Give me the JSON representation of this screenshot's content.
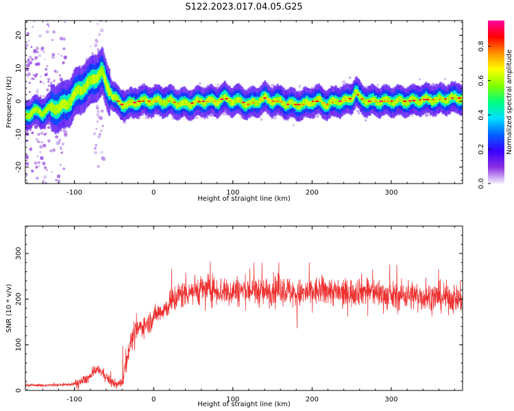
{
  "title": "S122.2023.017.04.05.G25",
  "chart_data": [
    {
      "type": "heatmap",
      "description_source": "top panel",
      "xlabel": "Height of straight line (km)",
      "ylabel": "Frequency (Hz)",
      "xlim": [
        -162,
        390
      ],
      "ylim": [
        -25,
        24.5
      ],
      "xticks": [
        -100,
        0,
        100,
        200,
        300
      ],
      "yticks": [
        -20,
        -10,
        0,
        10,
        20
      ],
      "colorbar": {
        "label": "Normalized spectral amplitude",
        "range": [
          0.0,
          0.95
        ],
        "ticks": [
          0.0,
          0.2,
          0.4,
          0.6,
          0.8
        ],
        "colormap": [
          "#e0d8f0",
          "#8a30e0",
          "#3a00ff",
          "#0060ff",
          "#00e0ff",
          "#00ff80",
          "#80ff00",
          "#ffff00",
          "#ff9000",
          "#ff0000",
          "#ff00a0"
        ]
      },
      "ridge": {
        "x": [
          -160,
          -150,
          -140,
          -130,
          -120,
          -110,
          -100,
          -90,
          -80,
          -70,
          -65,
          -60,
          -55,
          -50,
          -45,
          -40,
          -30,
          -20,
          0,
          20,
          40,
          60,
          80,
          90,
          100,
          110,
          120,
          130,
          140,
          150,
          160,
          170,
          180,
          190,
          200,
          210,
          220,
          230,
          240,
          250,
          255,
          260,
          270,
          280,
          300,
          320,
          340,
          360,
          380,
          390
        ],
        "freq_hz": [
          -4,
          -3,
          -3.5,
          -2,
          -2,
          -1,
          2,
          4,
          6,
          8,
          9,
          5,
          3,
          1,
          0,
          -1,
          -1,
          0,
          0,
          0,
          -1,
          0,
          0,
          1,
          0,
          0,
          -1,
          0,
          1,
          0,
          0,
          -1,
          -1,
          -1,
          0,
          0,
          -1,
          0,
          0,
          1,
          3,
          1,
          0,
          0,
          0,
          0,
          0.5,
          0.5,
          1,
          1
        ]
      }
    },
    {
      "type": "line",
      "description_source": "bottom panel",
      "xlabel": "Height of straight line (km)",
      "ylabel": "SNR (10 * v/v)",
      "xlim": [
        -162,
        390
      ],
      "ylim": [
        0,
        360
      ],
      "xticks": [
        -100,
        0,
        100,
        200,
        300
      ],
      "yticks": [
        0,
        100,
        200,
        300
      ],
      "series": [
        {
          "color": "#ee3030",
          "x": [
            -162,
            -140,
            -120,
            -100,
            -90,
            -80,
            -75,
            -70,
            -65,
            -60,
            -55,
            -50,
            -45,
            -40,
            -35,
            -30,
            -25,
            -20,
            -15,
            -10,
            -5,
            0,
            5,
            10,
            15,
            20,
            25,
            30,
            40,
            50,
            60,
            70,
            80,
            90,
            100,
            120,
            140,
            160,
            180,
            200,
            220,
            240,
            260,
            280,
            300,
            320,
            340,
            360,
            390
          ],
          "y": [
            12,
            11,
            12,
            14,
            20,
            30,
            40,
            45,
            40,
            30,
            20,
            15,
            12,
            20,
            60,
            100,
            120,
            135,
            140,
            145,
            150,
            160,
            170,
            175,
            180,
            185,
            200,
            205,
            215,
            220,
            220,
            222,
            220,
            215,
            218,
            220,
            215,
            225,
            210,
            215,
            220,
            210,
            220,
            215,
            205,
            210,
            205,
            205,
            200
          ]
        }
      ]
    }
  ]
}
